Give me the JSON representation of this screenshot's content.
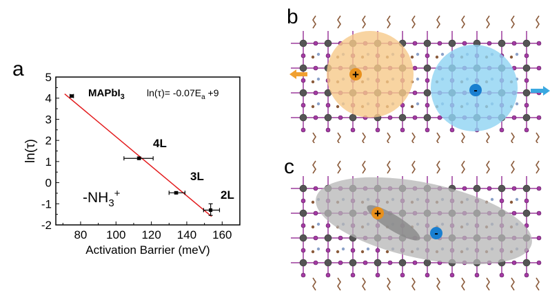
{
  "panels": {
    "a_label": "a",
    "b_label": "b",
    "c_label": "c"
  },
  "chart_data": {
    "type": "scatter",
    "title": "",
    "xlabel": "Activation Barrier (meV)",
    "ylabel": "ln(τ)",
    "xlim": [
      66,
      170
    ],
    "ylim": [
      -2,
      5
    ],
    "xticks": [
      80,
      100,
      120,
      140,
      160
    ],
    "yticks": [
      -2,
      -1,
      0,
      1,
      2,
      3,
      4,
      5
    ],
    "grid": false,
    "points": [
      {
        "label": "MAPbI",
        "label_sub": "3",
        "x": 75,
        "y": 4.1,
        "xerr": [
          74,
          76
        ],
        "yerr": [
          4.05,
          4.15
        ]
      },
      {
        "label": "4L",
        "x": 113,
        "y": 1.15,
        "xerr": [
          104.5,
          121
        ],
        "yerr": [
          1.1,
          1.22
        ]
      },
      {
        "label": "3L",
        "x": 134,
        "y": -0.48,
        "xerr": [
          130,
          139
        ],
        "yerr": [
          -0.53,
          -0.43
        ]
      },
      {
        "label": "2L",
        "x": 153.5,
        "y": -1.3,
        "xerr": [
          149.5,
          158.5
        ],
        "yerr": [
          -1.55,
          -1.0
        ]
      }
    ],
    "fit_line": {
      "slope": -0.07,
      "intercept": 9,
      "x_range": [
        71,
        154
      ],
      "color": "#e31a1c"
    },
    "equation": {
      "prefix": "ln(τ)= -0.07E",
      "sub": "a",
      "suffix": " +9"
    },
    "annotation_group": {
      "main": "-NH",
      "sub": "3",
      "sup": "+"
    }
  },
  "illustrations": {
    "b": {
      "positive_charge": "+",
      "negative_charge": "-",
      "hole_color": "#f6c98a",
      "electron_color": "#8fd3f2"
    },
    "c": {
      "positive_charge": "+",
      "negative_charge": "-",
      "exciton_color": "#b5b5b5"
    }
  }
}
